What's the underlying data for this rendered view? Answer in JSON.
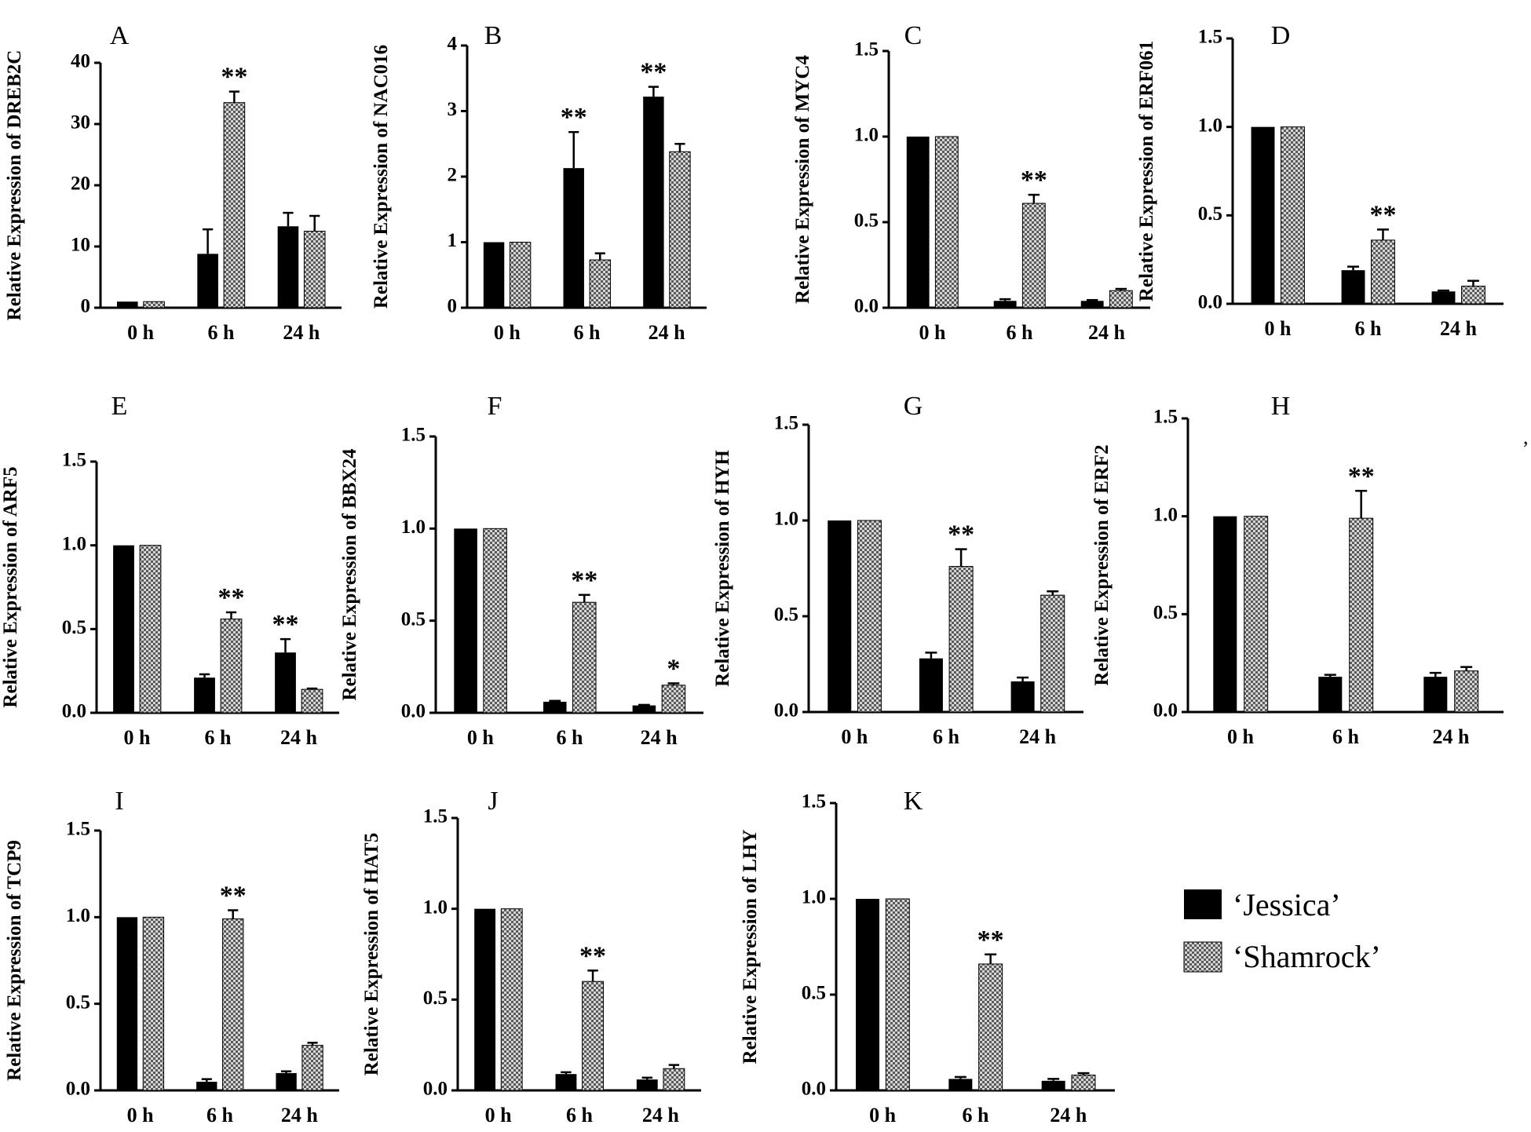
{
  "legend": {
    "entries": [
      {
        "name": "‘Jessica’",
        "color": "#000000",
        "pattern": "solid"
      },
      {
        "name": "‘Shamrock’",
        "color": "#8c8c8c",
        "pattern": "checkered"
      }
    ]
  },
  "stray_mark": ",",
  "chart_data": [
    {
      "panel": "A",
      "type": "bar",
      "ylabel": "Relative Expression of DREB2C",
      "categories": [
        "0 h",
        "6 h",
        "24 h"
      ],
      "yticks": [
        "0",
        "10",
        "20",
        "30",
        "40"
      ],
      "ylim": [
        0,
        40
      ],
      "series": [
        {
          "name": "‘Jessica’",
          "values": [
            1.0,
            8.8,
            13.3
          ],
          "errors": [
            0,
            4.0,
            2.2
          ]
        },
        {
          "name": "‘Shamrock’",
          "values": [
            1.0,
            33.5,
            12.5
          ],
          "errors": [
            0,
            1.8,
            2.5
          ]
        }
      ],
      "annotations": [
        {
          "category": "6 h",
          "text": "**"
        }
      ]
    },
    {
      "panel": "B",
      "type": "bar",
      "ylabel": "Relative Expression of NAC016",
      "categories": [
        "0 h",
        "6 h",
        "24 h"
      ],
      "yticks": [
        "0",
        "1",
        "2",
        "3",
        "4"
      ],
      "ylim": [
        0,
        4
      ],
      "series": [
        {
          "name": "‘Jessica’",
          "values": [
            1.0,
            2.13,
            3.22
          ],
          "errors": [
            0,
            0.55,
            0.15
          ]
        },
        {
          "name": "‘Shamrock’",
          "values": [
            1.0,
            0.73,
            2.38
          ],
          "errors": [
            0,
            0.1,
            0.12
          ]
        }
      ],
      "annotations": [
        {
          "category": "6 h",
          "text": "**"
        },
        {
          "category": "24 h",
          "text": "**"
        }
      ]
    },
    {
      "panel": "C",
      "type": "bar",
      "ylabel": "Relative Expression of MYC4",
      "categories": [
        "0 h",
        "6 h",
        "24 h"
      ],
      "yticks": [
        "0.0",
        "0.5",
        "1.0",
        "1.5"
      ],
      "ylim": [
        0,
        1.5
      ],
      "series": [
        {
          "name": "‘Jessica’",
          "values": [
            1.0,
            0.04,
            0.04
          ],
          "errors": [
            0,
            0.01,
            0.005
          ]
        },
        {
          "name": "‘Shamrock’",
          "values": [
            1.0,
            0.61,
            0.1
          ],
          "errors": [
            0,
            0.05,
            0.01
          ]
        }
      ],
      "annotations": [
        {
          "category": "6 h",
          "text": "**"
        }
      ]
    },
    {
      "panel": "D",
      "type": "bar",
      "ylabel": "Relative Expression of ERF061",
      "categories": [
        "0 h",
        "6 h",
        "24 h"
      ],
      "yticks": [
        "0.0",
        "0.5",
        "1.0",
        "1.5"
      ],
      "ylim": [
        0,
        1.5
      ],
      "series": [
        {
          "name": "‘Jessica’",
          "values": [
            1.0,
            0.19,
            0.07
          ],
          "errors": [
            0,
            0.02,
            0.005
          ]
        },
        {
          "name": "‘Shamrock’",
          "values": [
            1.0,
            0.36,
            0.1
          ],
          "errors": [
            0,
            0.06,
            0.03
          ]
        }
      ],
      "annotations": [
        {
          "category": "6 h",
          "text": "**"
        }
      ]
    },
    {
      "panel": "E",
      "type": "bar",
      "ylabel": "Relative Expression of ARF5",
      "categories": [
        "0 h",
        "6 h",
        "24 h"
      ],
      "yticks": [
        "0.0",
        "0.5",
        "1.0",
        "1.5"
      ],
      "ylim": [
        0,
        1.5
      ],
      "series": [
        {
          "name": "‘Jessica’",
          "values": [
            1.0,
            0.21,
            0.36
          ],
          "errors": [
            0,
            0.02,
            0.08
          ]
        },
        {
          "name": "‘Shamrock’",
          "values": [
            1.0,
            0.56,
            0.14
          ],
          "errors": [
            0,
            0.04,
            0.005
          ]
        }
      ],
      "annotations": [
        {
          "category": "6 h",
          "text": "**"
        },
        {
          "category": "24 h",
          "text": "**"
        }
      ]
    },
    {
      "panel": "F",
      "type": "bar",
      "ylabel": "Relative Expression of BBX24",
      "categories": [
        "0 h",
        "6 h",
        "24 h"
      ],
      "yticks": [
        "0.0",
        "0.5",
        "1.0",
        "1.5"
      ],
      "ylim": [
        0,
        1.5
      ],
      "series": [
        {
          "name": "‘Jessica’",
          "values": [
            1.0,
            0.06,
            0.04
          ],
          "errors": [
            0,
            0.005,
            0.003
          ]
        },
        {
          "name": "‘Shamrock’",
          "values": [
            1.0,
            0.6,
            0.15
          ],
          "errors": [
            0,
            0.04,
            0.01
          ]
        }
      ],
      "annotations": [
        {
          "category": "6 h",
          "text": "**"
        },
        {
          "category": "24 h",
          "text": "*"
        }
      ]
    },
    {
      "panel": "G",
      "type": "bar",
      "ylabel": "Relative Expression of HYH",
      "categories": [
        "0 h",
        "6 h",
        "24 h"
      ],
      "yticks": [
        "0.0",
        "0.5",
        "1.0",
        "1.5"
      ],
      "ylim": [
        0,
        1.5
      ],
      "series": [
        {
          "name": "‘Jessica’",
          "values": [
            1.0,
            0.28,
            0.16
          ],
          "errors": [
            0,
            0.03,
            0.02
          ]
        },
        {
          "name": "‘Shamrock’",
          "values": [
            1.0,
            0.76,
            0.61
          ],
          "errors": [
            0,
            0.09,
            0.02
          ]
        }
      ],
      "annotations": [
        {
          "category": "6 h",
          "text": "**"
        }
      ]
    },
    {
      "panel": "H",
      "type": "bar",
      "ylabel": "Relative Expression of ERF2",
      "categories": [
        "0 h",
        "6 h",
        "24 h"
      ],
      "yticks": [
        "0.0",
        "0.5",
        "1.0",
        "1.5"
      ],
      "ylim": [
        0,
        1.5
      ],
      "series": [
        {
          "name": "‘Jessica’",
          "values": [
            1.0,
            0.18,
            0.18
          ],
          "errors": [
            0,
            0.01,
            0.02
          ]
        },
        {
          "name": "‘Shamrock’",
          "values": [
            1.0,
            0.99,
            0.21
          ],
          "errors": [
            0,
            0.14,
            0.02
          ]
        }
      ],
      "annotations": [
        {
          "category": "6 h",
          "text": "**"
        }
      ]
    },
    {
      "panel": "I",
      "type": "bar",
      "ylabel": "Relative Expression of TCP9",
      "categories": [
        "0 h",
        "6 h",
        "24 h"
      ],
      "yticks": [
        "0.0",
        "0.5",
        "1.0",
        "1.5"
      ],
      "ylim": [
        0,
        1.5
      ],
      "series": [
        {
          "name": "‘Jessica’",
          "values": [
            1.0,
            0.05,
            0.1
          ],
          "errors": [
            0,
            0.015,
            0.01
          ]
        },
        {
          "name": "‘Shamrock’",
          "values": [
            1.0,
            0.99,
            0.26
          ],
          "errors": [
            0,
            0.05,
            0.015
          ]
        }
      ],
      "annotations": [
        {
          "category": "6 h",
          "text": "**"
        }
      ]
    },
    {
      "panel": "J",
      "type": "bar",
      "ylabel": "Relative Expression of HAT5",
      "categories": [
        "0 h",
        "6 h",
        "24 h"
      ],
      "yticks": [
        "0.0",
        "0.5",
        "1.0",
        "1.5"
      ],
      "ylim": [
        0,
        1.5
      ],
      "series": [
        {
          "name": "‘Jessica’",
          "values": [
            1.0,
            0.09,
            0.06
          ],
          "errors": [
            0,
            0.01,
            0.01
          ]
        },
        {
          "name": "‘Shamrock’",
          "values": [
            1.0,
            0.6,
            0.12
          ],
          "errors": [
            0,
            0.06,
            0.02
          ]
        }
      ],
      "annotations": [
        {
          "category": "6 h",
          "text": "**"
        }
      ]
    },
    {
      "panel": "K",
      "type": "bar",
      "ylabel": "Relative Expression of LHY",
      "categories": [
        "0 h",
        "6 h",
        "24 h"
      ],
      "yticks": [
        "0.0",
        "0.5",
        "1.0",
        "1.5"
      ],
      "ylim": [
        0,
        1.5
      ],
      "series": [
        {
          "name": "‘Jessica’",
          "values": [
            1.0,
            0.06,
            0.05
          ],
          "errors": [
            0,
            0.01,
            0.01
          ]
        },
        {
          "name": "‘Shamrock’",
          "values": [
            1.0,
            0.66,
            0.08
          ],
          "errors": [
            0,
            0.05,
            0.01
          ]
        }
      ],
      "annotations": [
        {
          "category": "6 h",
          "text": "**"
        }
      ]
    }
  ]
}
